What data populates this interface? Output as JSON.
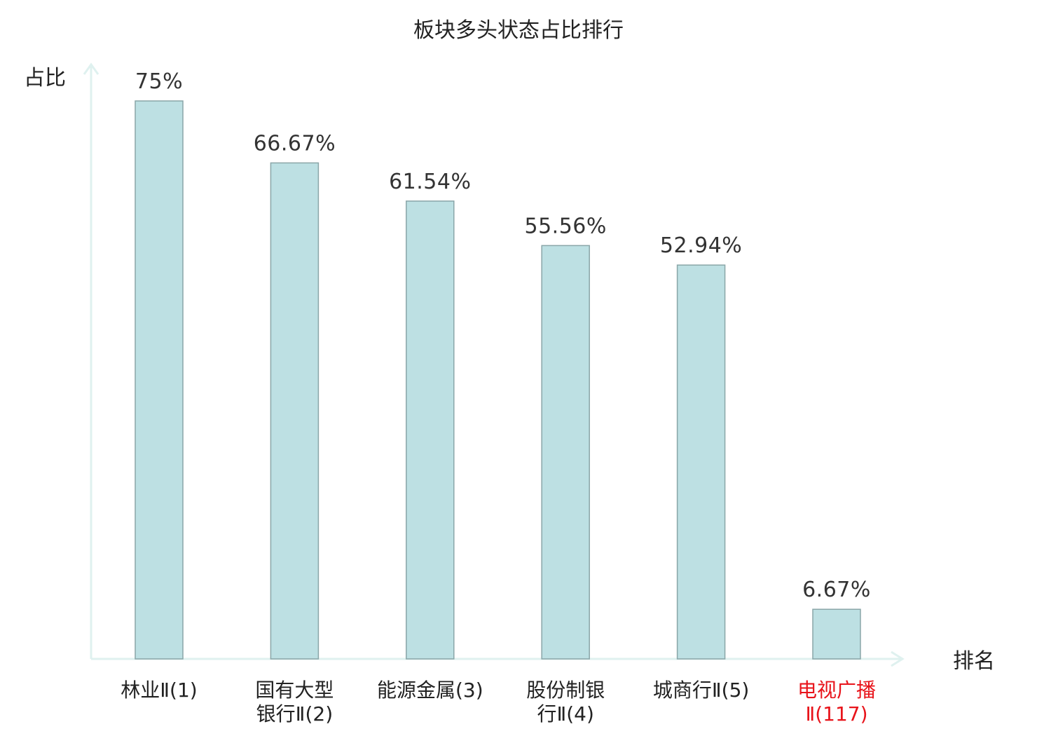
{
  "chart_data": {
    "type": "bar",
    "title": "板块多头状态占比排行",
    "ylabel": "占比",
    "xlabel": "排名",
    "ylim": [
      0,
      80
    ],
    "grid": false,
    "series": [
      {
        "values": [
          75,
          66.67,
          61.54,
          55.56,
          52.94,
          6.67
        ]
      }
    ],
    "value_labels": [
      "75%",
      "66.67%",
      "61.54%",
      "55.56%",
      "52.94%",
      "6.67%"
    ],
    "categories": [
      [
        "林业Ⅱ(1)"
      ],
      [
        "国有大型",
        "银行Ⅱ(2)"
      ],
      [
        "能源金属(3)"
      ],
      [
        "股份制银",
        "行Ⅱ(4)"
      ],
      [
        "城商行Ⅱ(5)"
      ],
      [
        "电视广播",
        "Ⅱ(117)"
      ]
    ],
    "colors": {
      "bar_fill": "#bde0e3",
      "bar_stroke": "#8aa6a8",
      "axis": "#dff1ef",
      "text": "#222222",
      "highlight": "#e8141b"
    },
    "highlight_index": 5
  }
}
